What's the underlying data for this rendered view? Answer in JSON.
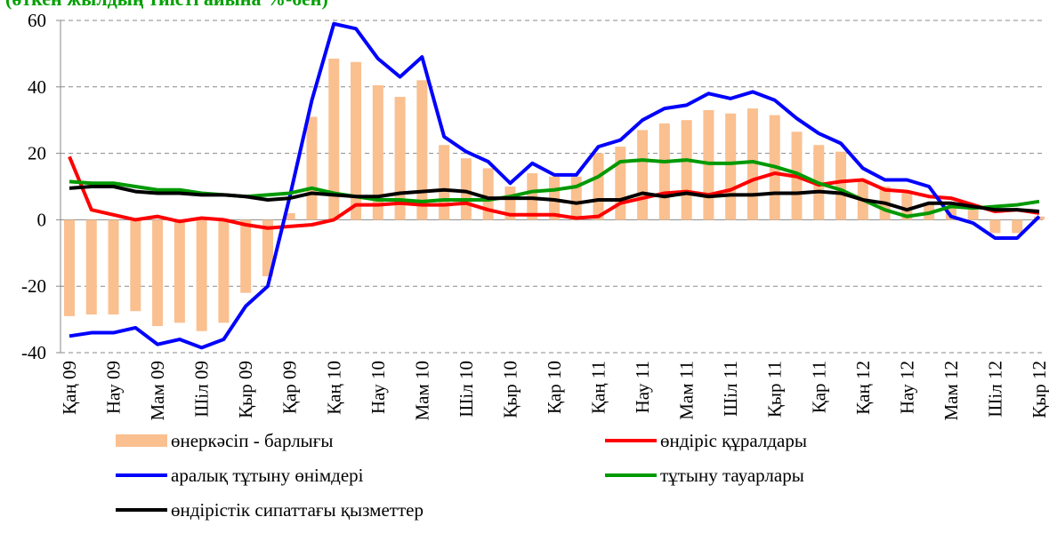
{
  "chart_data": {
    "type": "bar_line",
    "subtitle": "(өткен жылдың тиісті айына %-бен)",
    "categories": [
      "Қаң 09",
      null,
      "Нау 09",
      null,
      "Мам 09",
      null,
      "Шіл 09",
      null,
      "Қыр 09",
      null,
      "Қар 09",
      null,
      "Қаң 10",
      null,
      "Нау 10",
      null,
      "Мам 10",
      null,
      "Шіл 10",
      null,
      "Қыр 10",
      null,
      "Қар 10",
      null,
      "Қаң 11",
      null,
      "Нау 11",
      null,
      "Мам 11",
      null,
      "Шіл 11",
      null,
      "Қыр 11",
      null,
      "Қар 11",
      null,
      "Қаң 12",
      null,
      "Нау 12",
      null,
      "Мам 12",
      null,
      "Шіл 12",
      null,
      "Қыр 12"
    ],
    "series": [
      {
        "name": "өнеркәсіп - барлығы",
        "kind": "bar",
        "color": "#fac090",
        "values": [
          -29,
          -28.5,
          -28.5,
          -27.5,
          -32,
          -31,
          -33.5,
          -31,
          -22,
          -17,
          2,
          31,
          48.5,
          47.5,
          40.5,
          37,
          42,
          22.5,
          18.5,
          15.5,
          10,
          14,
          13,
          13,
          20,
          22,
          27,
          29,
          30,
          33,
          32,
          33.5,
          31.5,
          26.5,
          22.5,
          20.5,
          12,
          10,
          8,
          5,
          4,
          3,
          -4,
          -4,
          1
        ]
      },
      {
        "name": "өндіріс құралдары",
        "kind": "line",
        "color": "#ff0000",
        "values": [
          19,
          3,
          1.5,
          0,
          1,
          -0.5,
          0.5,
          0,
          -1.5,
          -2.5,
          -2,
          -1.5,
          0,
          4.5,
          4.5,
          5,
          4.5,
          4.5,
          5,
          3,
          1.5,
          1.5,
          1.5,
          0.5,
          1,
          5,
          6.5,
          8,
          8.5,
          7.5,
          9,
          12,
          14,
          13,
          10.5,
          11.5,
          12,
          9,
          8.5,
          7,
          6.5,
          4.5,
          2.5,
          3,
          2
        ]
      },
      {
        "name": "аралық тұтыну өнімдері",
        "kind": "line",
        "color": "#0000ff",
        "values": [
          -35,
          -34,
          -34,
          -32.5,
          -37.5,
          -36,
          -38.5,
          -36,
          -26,
          -20,
          7,
          36,
          59,
          57.5,
          48.5,
          43,
          49,
          25,
          20.5,
          17.5,
          11,
          17,
          13.5,
          13.5,
          22,
          24,
          30,
          33.5,
          34.5,
          38,
          36.5,
          38.5,
          36,
          30.5,
          26,
          23,
          15.5,
          12,
          12,
          10,
          1,
          -1,
          -5.5,
          -5.5,
          1
        ]
      },
      {
        "name": "тұтыну тауарлары",
        "kind": "line",
        "color": "#009900",
        "values": [
          11.5,
          11,
          11,
          10,
          9,
          9,
          8,
          7.5,
          7,
          7.5,
          8,
          9.5,
          8,
          7,
          6,
          6,
          5.5,
          6,
          6,
          6,
          7,
          8.5,
          9,
          10,
          13,
          17.5,
          18,
          17.5,
          18,
          17,
          17,
          17.5,
          16,
          14,
          11,
          9,
          6,
          3,
          1,
          2,
          4,
          3.5,
          4,
          4.5,
          5.5
        ]
      },
      {
        "name": "өндірістік сипаттағы қызметтер",
        "kind": "line",
        "color": "#000000",
        "values": [
          9.5,
          10,
          10,
          8.5,
          8,
          8,
          7.5,
          7.5,
          7,
          6,
          6.5,
          8,
          7.5,
          7,
          7,
          8,
          8.5,
          9,
          8.5,
          6.5,
          6.5,
          6.5,
          6,
          5,
          6,
          6,
          8,
          7,
          8,
          7,
          7.5,
          7.5,
          8,
          8,
          8.5,
          8,
          6,
          5,
          3,
          5,
          5,
          4,
          3,
          3,
          2.5
        ]
      }
    ],
    "ylim": [
      -40,
      60
    ],
    "yticks": [
      -40,
      -20,
      0,
      20,
      40,
      60
    ],
    "grid": true
  }
}
